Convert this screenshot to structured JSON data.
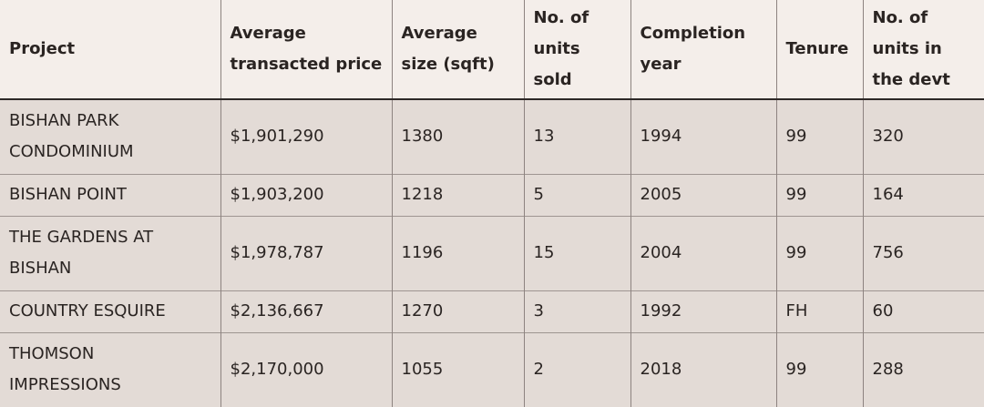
{
  "table": {
    "headers": [
      "Project",
      "Average transacted price",
      "Average size (sqft)",
      "No. of units sold",
      "Completion year",
      "Tenure",
      "No. of units in the devt"
    ],
    "rows": [
      [
        "BISHAN PARK CONDOMINIUM",
        "$1,901,290",
        "1380",
        "13",
        "1994",
        "99",
        "320"
      ],
      [
        "BISHAN POINT",
        "$1,903,200",
        "1218",
        "5",
        "2005",
        "99",
        "164"
      ],
      [
        "THE GARDENS AT BISHAN",
        "$1,978,787",
        "1196",
        "15",
        "2004",
        "99",
        "756"
      ],
      [
        "COUNTRY ESQUIRE",
        "$2,136,667",
        "1270",
        "3",
        "1992",
        "FH",
        "60"
      ],
      [
        "THOMSON IMPRESSIONS",
        "$2,170,000",
        "1055",
        "2",
        "2018",
        "99",
        "288"
      ]
    ]
  }
}
